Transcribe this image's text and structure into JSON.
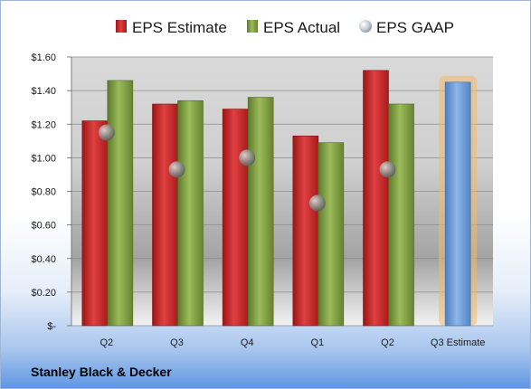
{
  "company": "Stanley Black & Decker",
  "colors": {
    "estimate": "#d42a2a",
    "actual": "#8aa84a",
    "gaap": "#8a8a8a",
    "projection": "#6f9fd8",
    "projection_glow": "#f3b96a"
  },
  "chart_data": {
    "type": "bar",
    "categories": [
      "Q2",
      "Q3",
      "Q4",
      "Q1",
      "Q2",
      "Q3 Estimate"
    ],
    "series": [
      {
        "name": "EPS Estimate",
        "values": [
          1.22,
          1.32,
          1.29,
          1.13,
          1.52,
          1.45
        ]
      },
      {
        "name": "EPS Actual",
        "values": [
          1.46,
          1.34,
          1.36,
          1.09,
          1.32,
          null
        ]
      },
      {
        "name": "EPS GAAP",
        "values": [
          1.15,
          0.93,
          1.0,
          0.73,
          0.93,
          null
        ]
      }
    ],
    "y_ticks": [
      "$-",
      "$0.20",
      "$0.40",
      "$0.60",
      "$0.80",
      "$1.00",
      "$1.20",
      "$1.40",
      "$1.60"
    ],
    "ylim": [
      0,
      1.6
    ],
    "legend_position": "top",
    "grid": true
  }
}
